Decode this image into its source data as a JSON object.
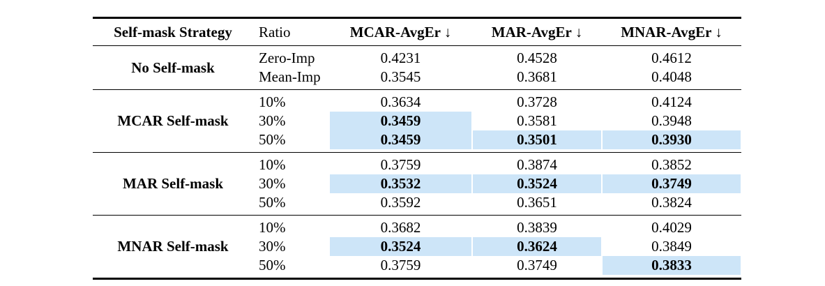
{
  "table": {
    "highlight_color": "#cde5f8",
    "columns": [
      {
        "key": "strategy",
        "label": "Self-mask Strategy",
        "bold": true,
        "align": "left"
      },
      {
        "key": "ratio",
        "label": "Ratio",
        "bold": false,
        "align": "left"
      },
      {
        "key": "mcar",
        "label": "MCAR-AvgEr ↓",
        "bold": true,
        "align": "center"
      },
      {
        "key": "mar",
        "label": "MAR-AvgEr ↓",
        "bold": true,
        "align": "center"
      },
      {
        "key": "mnar",
        "label": "MNAR-AvgEr ↓",
        "bold": true,
        "align": "center"
      }
    ],
    "groups": [
      {
        "strategy": "No Self-mask",
        "rows": [
          {
            "ratio": "Zero-Imp",
            "cells": [
              {
                "value": "0.4231"
              },
              {
                "value": "0.4528"
              },
              {
                "value": "0.4612"
              }
            ]
          },
          {
            "ratio": "Mean-Imp",
            "cells": [
              {
                "value": "0.3545"
              },
              {
                "value": "0.3681"
              },
              {
                "value": "0.4048"
              }
            ]
          }
        ]
      },
      {
        "strategy": "MCAR Self-mask",
        "rows": [
          {
            "ratio": "10%",
            "cells": [
              {
                "value": "0.3634"
              },
              {
                "value": "0.3728"
              },
              {
                "value": "0.4124"
              }
            ]
          },
          {
            "ratio": "30%",
            "cells": [
              {
                "value": "0.3459",
                "bold": true,
                "highlight": true
              },
              {
                "value": "0.3581"
              },
              {
                "value": "0.3948"
              }
            ]
          },
          {
            "ratio": "50%",
            "cells": [
              {
                "value": "0.3459",
                "bold": true,
                "highlight": true
              },
              {
                "value": "0.3501",
                "bold": true,
                "highlight": true
              },
              {
                "value": "0.3930",
                "bold": true,
                "highlight": true
              }
            ]
          }
        ]
      },
      {
        "strategy": "MAR Self-mask",
        "rows": [
          {
            "ratio": "10%",
            "cells": [
              {
                "value": "0.3759"
              },
              {
                "value": "0.3874"
              },
              {
                "value": "0.3852"
              }
            ]
          },
          {
            "ratio": "30%",
            "cells": [
              {
                "value": "0.3532",
                "bold": true,
                "highlight": true
              },
              {
                "value": "0.3524",
                "bold": true,
                "highlight": true
              },
              {
                "value": "0.3749",
                "bold": true,
                "highlight": true
              }
            ]
          },
          {
            "ratio": "50%",
            "cells": [
              {
                "value": "0.3592"
              },
              {
                "value": "0.3651"
              },
              {
                "value": "0.3824"
              }
            ]
          }
        ]
      },
      {
        "strategy": "MNAR Self-mask",
        "rows": [
          {
            "ratio": "10%",
            "cells": [
              {
                "value": "0.3682"
              },
              {
                "value": "0.3839"
              },
              {
                "value": "0.4029"
              }
            ]
          },
          {
            "ratio": "30%",
            "cells": [
              {
                "value": "0.3524",
                "bold": true,
                "highlight": true
              },
              {
                "value": "0.3624",
                "bold": true,
                "highlight": true
              },
              {
                "value": "0.3849"
              }
            ]
          },
          {
            "ratio": "50%",
            "cells": [
              {
                "value": "0.3759"
              },
              {
                "value": "0.3749"
              },
              {
                "value": "0.3833",
                "bold": true,
                "highlight": true
              }
            ]
          }
        ]
      }
    ]
  }
}
